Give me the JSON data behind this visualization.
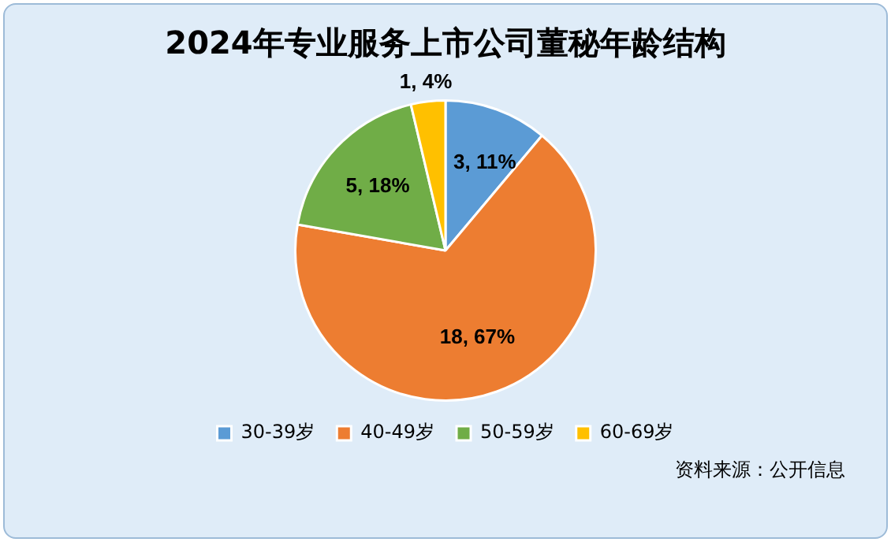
{
  "chart_data": {
    "type": "pie",
    "title": "2024年专业服务上市公司董秘年龄结构",
    "categories": [
      "30-39岁",
      "40-49岁",
      "50-59岁",
      "60-69岁"
    ],
    "values": [
      3,
      18,
      5,
      1
    ],
    "colors": [
      "#5b9bd5",
      "#ed7d31",
      "#70ad47",
      "#ffc000"
    ],
    "value_labels": [
      "3, 11%",
      "18, 67%",
      "5, 18%",
      "1, 4%"
    ],
    "legend": "bottom",
    "annotations": [
      "资料来源：公开信息"
    ]
  }
}
